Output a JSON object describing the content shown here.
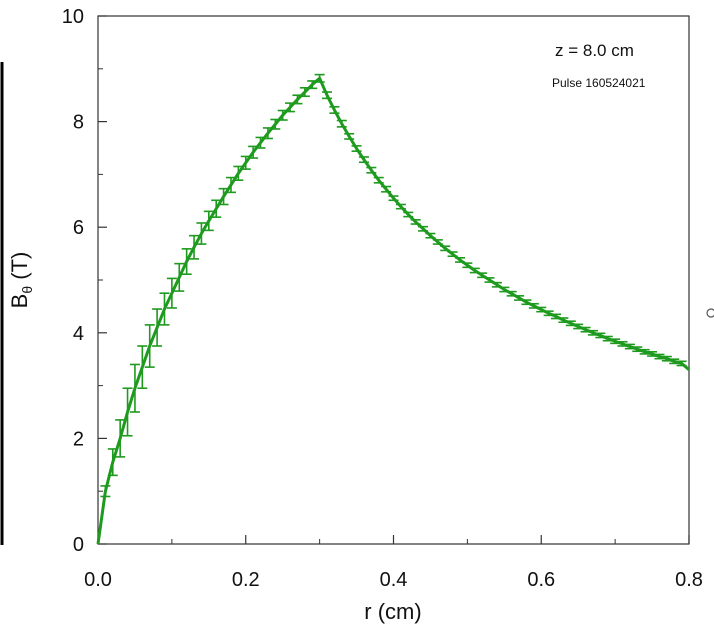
{
  "chart_data": {
    "type": "line",
    "title": "",
    "xlabel": "r (cm)",
    "ylabel_main": "B",
    "ylabel_sub": "θ",
    "ylabel_unit": " (T)",
    "xlim": [
      0,
      0.8
    ],
    "ylim": [
      0,
      10
    ],
    "xticks": [
      0.0,
      0.2,
      0.4,
      0.6,
      0.8
    ],
    "xtick_labels": [
      "0.0",
      "0.2",
      "0.4",
      "0.6",
      "0.8"
    ],
    "yticks": [
      0,
      2,
      4,
      6,
      8,
      10
    ],
    "ytick_labels": [
      "0",
      "2",
      "4",
      "6",
      "8",
      "10"
    ],
    "grid": false,
    "annotations": [
      "z = 8.0 cm",
      "Pulse 160524021"
    ],
    "colors": {
      "series": "#1e9a1e",
      "axis": "#333333"
    },
    "series": [
      {
        "x": [
          0.0,
          0.01,
          0.02,
          0.03,
          0.04,
          0.05,
          0.06,
          0.07,
          0.08,
          0.09,
          0.1,
          0.11,
          0.12,
          0.13,
          0.14,
          0.15,
          0.16,
          0.17,
          0.18,
          0.19,
          0.2,
          0.21,
          0.22,
          0.23,
          0.24,
          0.25,
          0.26,
          0.27,
          0.28,
          0.29,
          0.3,
          0.31,
          0.32,
          0.33,
          0.34,
          0.35,
          0.36,
          0.37,
          0.38,
          0.39,
          0.4,
          0.41,
          0.42,
          0.43,
          0.44,
          0.45,
          0.46,
          0.47,
          0.48,
          0.49,
          0.5,
          0.51,
          0.52,
          0.53,
          0.54,
          0.55,
          0.56,
          0.57,
          0.58,
          0.59,
          0.6,
          0.61,
          0.62,
          0.63,
          0.64,
          0.65,
          0.66,
          0.67,
          0.68,
          0.69,
          0.7,
          0.71,
          0.72,
          0.73,
          0.74,
          0.75,
          0.76,
          0.77,
          0.78,
          0.79,
          0.8
        ],
        "y": [
          0.0,
          1.0,
          1.55,
          2.0,
          2.5,
          2.95,
          3.35,
          3.75,
          4.1,
          4.45,
          4.75,
          5.05,
          5.35,
          5.62,
          5.88,
          6.12,
          6.35,
          6.58,
          6.8,
          7.02,
          7.22,
          7.42,
          7.6,
          7.78,
          7.95,
          8.12,
          8.27,
          8.42,
          8.56,
          8.7,
          8.82,
          8.5,
          8.22,
          7.96,
          7.72,
          7.49,
          7.28,
          7.08,
          6.89,
          6.72,
          6.55,
          6.39,
          6.24,
          6.1,
          5.97,
          5.84,
          5.72,
          5.6,
          5.49,
          5.38,
          5.28,
          5.18,
          5.09,
          5.0,
          4.91,
          4.82,
          4.74,
          4.66,
          4.58,
          4.51,
          4.44,
          4.37,
          4.31,
          4.24,
          4.18,
          4.12,
          4.06,
          4.0,
          3.95,
          3.89,
          3.84,
          3.79,
          3.74,
          3.69,
          3.64,
          3.6,
          3.55,
          3.51,
          3.46,
          3.42,
          3.3
        ],
        "err": [
          0.0,
          0.1,
          0.25,
          0.35,
          0.45,
          0.45,
          0.4,
          0.4,
          0.35,
          0.3,
          0.28,
          0.26,
          0.24,
          0.22,
          0.2,
          0.18,
          0.16,
          0.15,
          0.14,
          0.13,
          0.12,
          0.11,
          0.1,
          0.1,
          0.09,
          0.09,
          0.08,
          0.08,
          0.08,
          0.07,
          0.07,
          0.06,
          0.06,
          0.06,
          0.05,
          0.05,
          0.05,
          0.05,
          0.05,
          0.05,
          0.04,
          0.04,
          0.04,
          0.04,
          0.04,
          0.04,
          0.04,
          0.04,
          0.04,
          0.04,
          0.04,
          0.04,
          0.04,
          0.04,
          0.04,
          0.04,
          0.04,
          0.04,
          0.04,
          0.04,
          0.04,
          0.04,
          0.04,
          0.04,
          0.04,
          0.04,
          0.04,
          0.04,
          0.04,
          0.04,
          0.04,
          0.04,
          0.04,
          0.04,
          0.04,
          0.04,
          0.04,
          0.04,
          0.04,
          0.04,
          0.0
        ]
      }
    ]
  }
}
